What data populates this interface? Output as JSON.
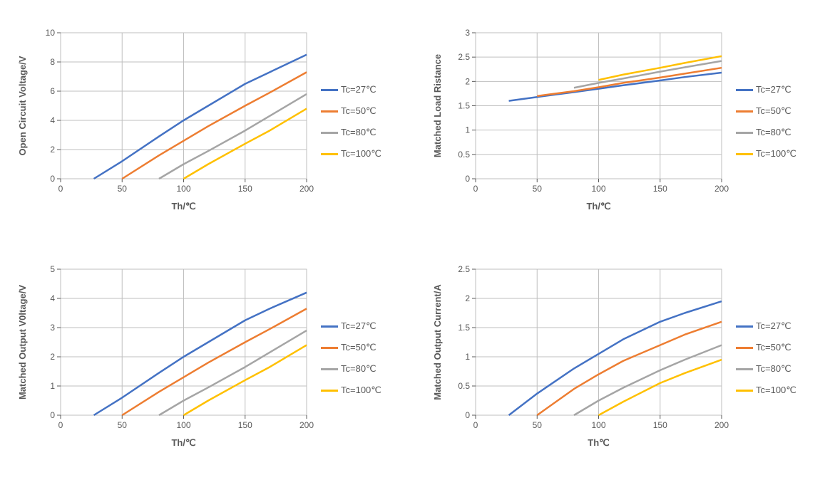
{
  "global": {
    "x_values": [
      27,
      50,
      80,
      100,
      120,
      150,
      170,
      200
    ],
    "series_colors": [
      "#4472c4",
      "#ed7d31",
      "#a5a5a5",
      "#ffc000"
    ],
    "series_labels": [
      "Tc=27℃",
      "Tc=50℃",
      "Tc=80℃",
      "Tc=100℃"
    ],
    "grid_color": "#bfbfbf",
    "axis_color": "#595959",
    "text_color": "#595959",
    "background_color": "#ffffff",
    "line_width": 2.5,
    "label_fontsize": 13,
    "tick_fontsize": 12,
    "ylabel_fontweight": "bold"
  },
  "charts": [
    {
      "id": "open-circuit-voltage",
      "ylabel": "Open Circuit Voltage/V",
      "xlabel": "Th/℃",
      "xlim": [
        0,
        200
      ],
      "xtick_step": 50,
      "ylim": [
        0,
        10
      ],
      "ytick_step": 2,
      "series_start_index": [
        0,
        1,
        2,
        3
      ],
      "series": [
        [
          0,
          1.2,
          2.9,
          4.0,
          5.0,
          6.5,
          7.3,
          8.5
        ],
        [
          0,
          1.6,
          2.6,
          3.6,
          5.0,
          5.9,
          7.3
        ],
        [
          0,
          1.0,
          1.9,
          3.3,
          4.3,
          5.8
        ],
        [
          0,
          1.0,
          2.4,
          3.3,
          4.8
        ]
      ]
    },
    {
      "id": "matched-load-resistance",
      "ylabel": "Matched Load Ristance",
      "xlabel": "Th/℃",
      "xlim": [
        0,
        200
      ],
      "xtick_step": 50,
      "ylim": [
        0,
        3
      ],
      "ytick_step": 0.5,
      "series_start_index": [
        0,
        1,
        2,
        3
      ],
      "series": [
        [
          1.6,
          1.68,
          1.78,
          1.85,
          1.92,
          2.02,
          2.09,
          2.18
        ],
        [
          1.7,
          1.8,
          1.88,
          1.97,
          2.08,
          2.16,
          2.28
        ],
        [
          1.87,
          1.97,
          2.06,
          2.2,
          2.29,
          2.42
        ],
        [
          2.03,
          2.14,
          2.28,
          2.38,
          2.52
        ]
      ]
    },
    {
      "id": "matched-output-voltage",
      "ylabel": "Matched Output V0ltage/V",
      "xlabel": "Th/℃",
      "xlim": [
        0,
        200
      ],
      "xtick_step": 50,
      "ylim": [
        0,
        5
      ],
      "ytick_step": 1,
      "series_start_index": [
        0,
        1,
        2,
        3
      ],
      "series": [
        [
          0,
          0.6,
          1.45,
          2.0,
          2.5,
          3.25,
          3.65,
          4.2
        ],
        [
          0,
          0.8,
          1.3,
          1.8,
          2.5,
          2.95,
          3.65
        ],
        [
          0,
          0.5,
          0.95,
          1.65,
          2.15,
          2.9
        ],
        [
          0,
          0.5,
          1.2,
          1.65,
          2.4
        ]
      ]
    },
    {
      "id": "matched-output-current",
      "ylabel": "Matched Output Current/A",
      "xlabel": "Th℃",
      "xlim": [
        0,
        200
      ],
      "xtick_step": 50,
      "ylim": [
        0,
        2.5
      ],
      "ytick_step": 0.5,
      "series_start_index": [
        0,
        1,
        2,
        3
      ],
      "series": [
        [
          0,
          0.37,
          0.8,
          1.05,
          1.3,
          1.6,
          1.75,
          1.95
        ],
        [
          0,
          0.45,
          0.7,
          0.93,
          1.2,
          1.38,
          1.6
        ],
        [
          0,
          0.25,
          0.47,
          0.77,
          0.95,
          1.2
        ],
        [
          0,
          0.23,
          0.55,
          0.72,
          0.95
        ]
      ]
    }
  ]
}
